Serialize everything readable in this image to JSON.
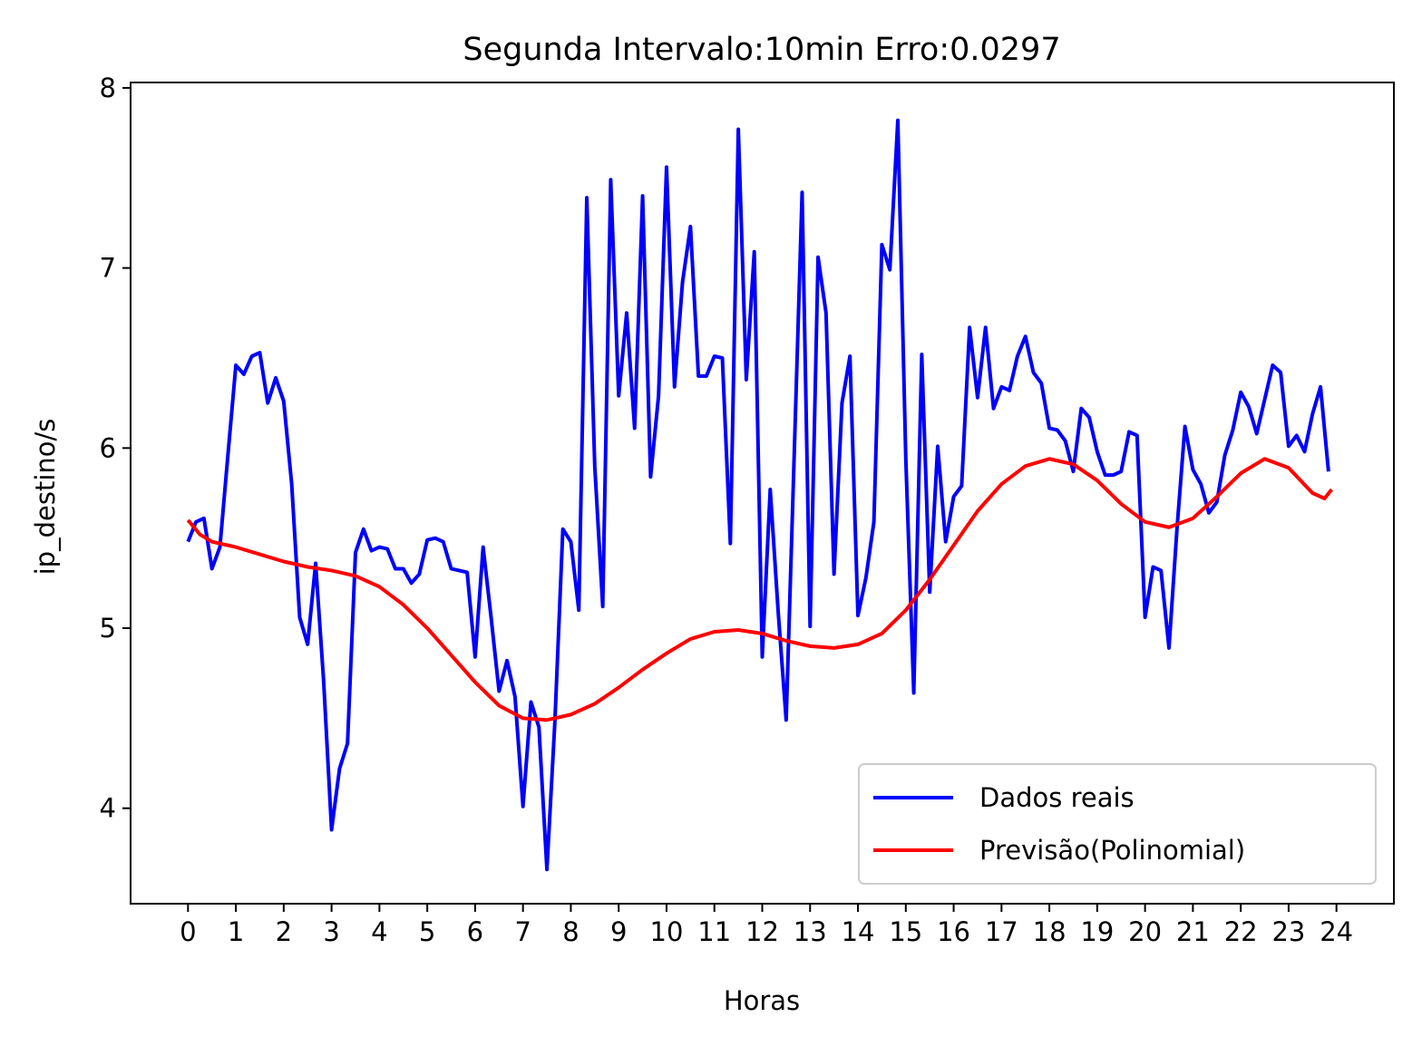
{
  "chart_data": {
    "type": "line",
    "title": "Segunda Intervalo:10min Erro:0.0297",
    "xlabel": "Horas",
    "ylabel": "ip_destino/s",
    "xlim": [
      -1.2,
      25.2
    ],
    "ylim": [
      3.47,
      8.03
    ],
    "xticks": [
      0,
      1,
      2,
      3,
      4,
      5,
      6,
      7,
      8,
      9,
      10,
      11,
      12,
      13,
      14,
      15,
      16,
      17,
      18,
      19,
      20,
      21,
      22,
      23,
      24
    ],
    "yticks": [
      4,
      5,
      6,
      7,
      8
    ],
    "grid": false,
    "legend_position": "lower-right",
    "series": [
      {
        "name": "Dados reais",
        "color": "#0000ff",
        "x": [
          0,
          0.1667,
          0.3333,
          0.5,
          0.6667,
          0.8333,
          1,
          1.1667,
          1.3333,
          1.5,
          1.6667,
          1.8333,
          2,
          2.1667,
          2.3333,
          2.5,
          2.6667,
          2.8333,
          3,
          3.1667,
          3.3333,
          3.5,
          3.6667,
          3.8333,
          4,
          4.1667,
          4.3333,
          4.5,
          4.6667,
          4.8333,
          5,
          5.1667,
          5.3333,
          5.5,
          5.6667,
          5.8333,
          6,
          6.1667,
          6.3333,
          6.5,
          6.6667,
          6.8333,
          7,
          7.1667,
          7.3333,
          7.5,
          7.6667,
          7.8333,
          8,
          8.1667,
          8.3333,
          8.5,
          8.6667,
          8.8333,
          9,
          9.1667,
          9.3333,
          9.5,
          9.6667,
          9.8333,
          10,
          10.1667,
          10.3333,
          10.5,
          10.6667,
          10.8333,
          11,
          11.1667,
          11.3333,
          11.5,
          11.6667,
          11.8333,
          12,
          12.1667,
          12.3333,
          12.5,
          12.6667,
          12.8333,
          13,
          13.1667,
          13.3333,
          13.5,
          13.6667,
          13.8333,
          14,
          14.1667,
          14.3333,
          14.5,
          14.6667,
          14.8333,
          15,
          15.1667,
          15.3333,
          15.5,
          15.6667,
          15.8333,
          16,
          16.1667,
          16.3333,
          16.5,
          16.6667,
          16.8333,
          17,
          17.1667,
          17.3333,
          17.5,
          17.6667,
          17.8333,
          18,
          18.1667,
          18.3333,
          18.5,
          18.6667,
          18.8333,
          19,
          19.1667,
          19.3333,
          19.5,
          19.6667,
          19.8333,
          20,
          20.1667,
          20.3333,
          20.5,
          20.6667,
          20.8333,
          21,
          21.1667,
          21.3333,
          21.5,
          21.6667,
          21.8333,
          22,
          22.1667,
          22.3333,
          22.5,
          22.6667,
          22.8333,
          23,
          23.1667,
          23.3333,
          23.5,
          23.6667,
          23.8333
        ],
        "y": [
          5.48,
          5.59,
          5.61,
          5.33,
          5.45,
          5.96,
          6.46,
          6.41,
          6.51,
          6.53,
          6.25,
          6.39,
          6.26,
          5.8,
          5.06,
          4.91,
          5.36,
          4.71,
          3.88,
          4.22,
          4.36,
          5.42,
          5.55,
          5.43,
          5.45,
          5.44,
          5.33,
          5.33,
          5.25,
          5.3,
          5.49,
          5.5,
          5.48,
          5.33,
          5.32,
          5.31,
          4.84,
          5.45,
          5.06,
          4.65,
          4.82,
          4.62,
          4.01,
          4.59,
          4.45,
          3.66,
          4.48,
          5.55,
          5.48,
          5.1,
          7.39,
          5.9,
          5.12,
          7.49,
          6.29,
          6.75,
          6.11,
          7.4,
          5.84,
          6.29,
          7.56,
          6.34,
          6.92,
          7.23,
          6.4,
          6.4,
          6.51,
          6.5,
          5.47,
          7.77,
          6.38,
          7.09,
          4.84,
          5.77,
          5.09,
          4.49,
          5.95,
          7.42,
          5.01,
          7.06,
          6.75,
          5.3,
          6.25,
          6.51,
          5.07,
          5.28,
          5.59,
          7.13,
          6.99,
          7.82,
          5.94,
          4.64,
          6.52,
          5.2,
          6.01,
          5.48,
          5.73,
          5.79,
          6.67,
          6.28,
          6.67,
          6.22,
          6.34,
          6.32,
          6.51,
          6.62,
          6.42,
          6.36,
          6.11,
          6.1,
          6.04,
          5.87,
          6.22,
          6.17,
          5.98,
          5.85,
          5.85,
          5.87,
          6.09,
          6.07,
          5.06,
          5.34,
          5.32,
          4.89,
          5.55,
          6.12,
          5.88,
          5.8,
          5.64,
          5.7,
          5.96,
          6.1,
          6.31,
          6.23,
          6.08,
          6.27,
          6.46,
          6.42,
          6.01,
          6.07,
          5.98,
          6.19,
          6.34,
          5.87
        ]
      },
      {
        "name": "Previsão(Polinomial)",
        "color": "#ff0000",
        "x": [
          0,
          0.25,
          0.5,
          1,
          1.5,
          2,
          2.5,
          3,
          3.5,
          4,
          4.5,
          5,
          5.5,
          6,
          6.5,
          7,
          7.5,
          8,
          8.5,
          9,
          9.5,
          10,
          10.5,
          11,
          11.5,
          12,
          12.5,
          13,
          13.5,
          14,
          14.5,
          15,
          15.5,
          16,
          16.5,
          17,
          17.5,
          18,
          18.5,
          19,
          19.5,
          20,
          20.5,
          21,
          21.5,
          22,
          22.5,
          23,
          23.25,
          23.5,
          23.75,
          23.9
        ],
        "y": [
          5.6,
          5.52,
          5.48,
          5.45,
          5.41,
          5.37,
          5.34,
          5.32,
          5.29,
          5.23,
          5.13,
          5.0,
          4.85,
          4.7,
          4.57,
          4.5,
          4.49,
          4.52,
          4.58,
          4.67,
          4.77,
          4.86,
          4.94,
          4.98,
          4.99,
          4.97,
          4.93,
          4.9,
          4.89,
          4.91,
          4.97,
          5.1,
          5.27,
          5.46,
          5.65,
          5.8,
          5.9,
          5.94,
          5.91,
          5.82,
          5.69,
          5.59,
          5.56,
          5.61,
          5.73,
          5.86,
          5.94,
          5.89,
          5.82,
          5.75,
          5.72,
          5.77
        ]
      }
    ]
  }
}
